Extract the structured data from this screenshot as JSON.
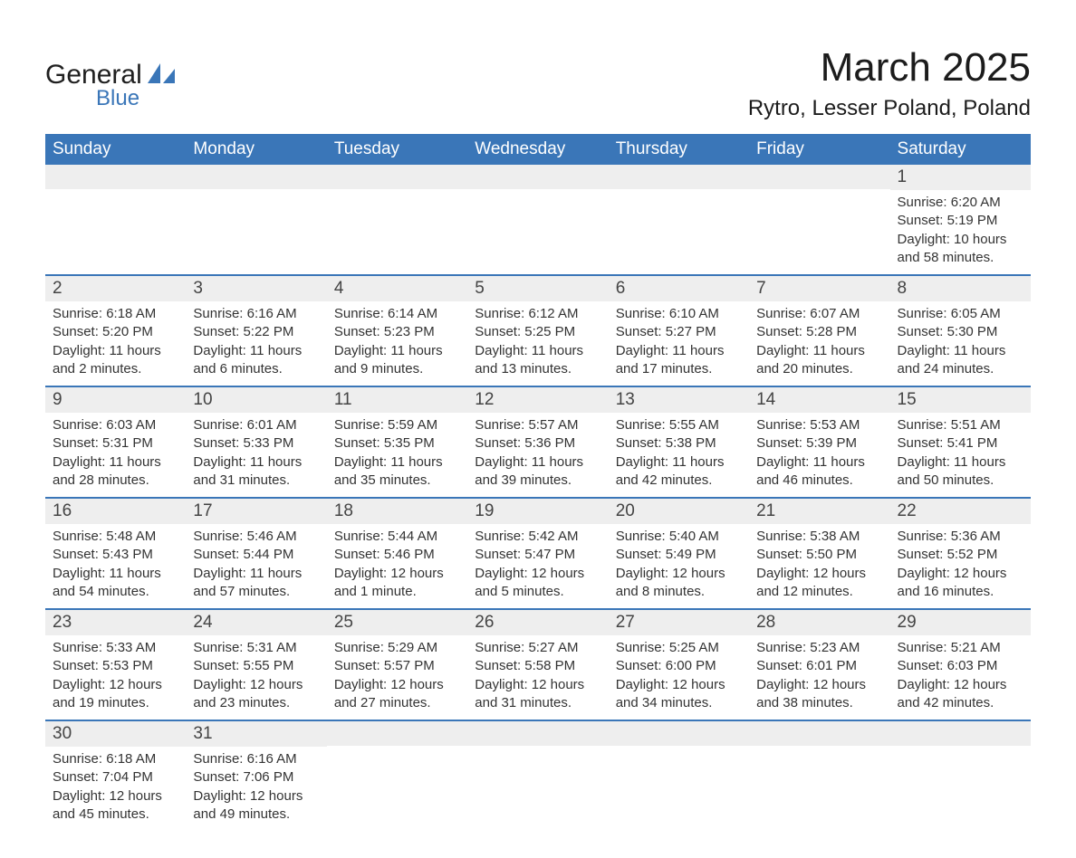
{
  "logo": {
    "main": "General",
    "sub": "Blue",
    "sail_color": "#3a76b8"
  },
  "title": "March 2025",
  "location": "Rytro, Lesser Poland, Poland",
  "header_bg": "#3a76b8",
  "header_text_color": "#ffffff",
  "daynum_bg": "#eeeeee",
  "row_divider_color": "#3a76b8",
  "text_color": "#333333",
  "weekdays": [
    "Sunday",
    "Monday",
    "Tuesday",
    "Wednesday",
    "Thursday",
    "Friday",
    "Saturday"
  ],
  "weeks": [
    [
      null,
      null,
      null,
      null,
      null,
      null,
      {
        "n": "1",
        "sunrise": "Sunrise: 6:20 AM",
        "sunset": "Sunset: 5:19 PM",
        "daylight": "Daylight: 10 hours and 58 minutes."
      }
    ],
    [
      {
        "n": "2",
        "sunrise": "Sunrise: 6:18 AM",
        "sunset": "Sunset: 5:20 PM",
        "daylight": "Daylight: 11 hours and 2 minutes."
      },
      {
        "n": "3",
        "sunrise": "Sunrise: 6:16 AM",
        "sunset": "Sunset: 5:22 PM",
        "daylight": "Daylight: 11 hours and 6 minutes."
      },
      {
        "n": "4",
        "sunrise": "Sunrise: 6:14 AM",
        "sunset": "Sunset: 5:23 PM",
        "daylight": "Daylight: 11 hours and 9 minutes."
      },
      {
        "n": "5",
        "sunrise": "Sunrise: 6:12 AM",
        "sunset": "Sunset: 5:25 PM",
        "daylight": "Daylight: 11 hours and 13 minutes."
      },
      {
        "n": "6",
        "sunrise": "Sunrise: 6:10 AM",
        "sunset": "Sunset: 5:27 PM",
        "daylight": "Daylight: 11 hours and 17 minutes."
      },
      {
        "n": "7",
        "sunrise": "Sunrise: 6:07 AM",
        "sunset": "Sunset: 5:28 PM",
        "daylight": "Daylight: 11 hours and 20 minutes."
      },
      {
        "n": "8",
        "sunrise": "Sunrise: 6:05 AM",
        "sunset": "Sunset: 5:30 PM",
        "daylight": "Daylight: 11 hours and 24 minutes."
      }
    ],
    [
      {
        "n": "9",
        "sunrise": "Sunrise: 6:03 AM",
        "sunset": "Sunset: 5:31 PM",
        "daylight": "Daylight: 11 hours and 28 minutes."
      },
      {
        "n": "10",
        "sunrise": "Sunrise: 6:01 AM",
        "sunset": "Sunset: 5:33 PM",
        "daylight": "Daylight: 11 hours and 31 minutes."
      },
      {
        "n": "11",
        "sunrise": "Sunrise: 5:59 AM",
        "sunset": "Sunset: 5:35 PM",
        "daylight": "Daylight: 11 hours and 35 minutes."
      },
      {
        "n": "12",
        "sunrise": "Sunrise: 5:57 AM",
        "sunset": "Sunset: 5:36 PM",
        "daylight": "Daylight: 11 hours and 39 minutes."
      },
      {
        "n": "13",
        "sunrise": "Sunrise: 5:55 AM",
        "sunset": "Sunset: 5:38 PM",
        "daylight": "Daylight: 11 hours and 42 minutes."
      },
      {
        "n": "14",
        "sunrise": "Sunrise: 5:53 AM",
        "sunset": "Sunset: 5:39 PM",
        "daylight": "Daylight: 11 hours and 46 minutes."
      },
      {
        "n": "15",
        "sunrise": "Sunrise: 5:51 AM",
        "sunset": "Sunset: 5:41 PM",
        "daylight": "Daylight: 11 hours and 50 minutes."
      }
    ],
    [
      {
        "n": "16",
        "sunrise": "Sunrise: 5:48 AM",
        "sunset": "Sunset: 5:43 PM",
        "daylight": "Daylight: 11 hours and 54 minutes."
      },
      {
        "n": "17",
        "sunrise": "Sunrise: 5:46 AM",
        "sunset": "Sunset: 5:44 PM",
        "daylight": "Daylight: 11 hours and 57 minutes."
      },
      {
        "n": "18",
        "sunrise": "Sunrise: 5:44 AM",
        "sunset": "Sunset: 5:46 PM",
        "daylight": "Daylight: 12 hours and 1 minute."
      },
      {
        "n": "19",
        "sunrise": "Sunrise: 5:42 AM",
        "sunset": "Sunset: 5:47 PM",
        "daylight": "Daylight: 12 hours and 5 minutes."
      },
      {
        "n": "20",
        "sunrise": "Sunrise: 5:40 AM",
        "sunset": "Sunset: 5:49 PM",
        "daylight": "Daylight: 12 hours and 8 minutes."
      },
      {
        "n": "21",
        "sunrise": "Sunrise: 5:38 AM",
        "sunset": "Sunset: 5:50 PM",
        "daylight": "Daylight: 12 hours and 12 minutes."
      },
      {
        "n": "22",
        "sunrise": "Sunrise: 5:36 AM",
        "sunset": "Sunset: 5:52 PM",
        "daylight": "Daylight: 12 hours and 16 minutes."
      }
    ],
    [
      {
        "n": "23",
        "sunrise": "Sunrise: 5:33 AM",
        "sunset": "Sunset: 5:53 PM",
        "daylight": "Daylight: 12 hours and 19 minutes."
      },
      {
        "n": "24",
        "sunrise": "Sunrise: 5:31 AM",
        "sunset": "Sunset: 5:55 PM",
        "daylight": "Daylight: 12 hours and 23 minutes."
      },
      {
        "n": "25",
        "sunrise": "Sunrise: 5:29 AM",
        "sunset": "Sunset: 5:57 PM",
        "daylight": "Daylight: 12 hours and 27 minutes."
      },
      {
        "n": "26",
        "sunrise": "Sunrise: 5:27 AM",
        "sunset": "Sunset: 5:58 PM",
        "daylight": "Daylight: 12 hours and 31 minutes."
      },
      {
        "n": "27",
        "sunrise": "Sunrise: 5:25 AM",
        "sunset": "Sunset: 6:00 PM",
        "daylight": "Daylight: 12 hours and 34 minutes."
      },
      {
        "n": "28",
        "sunrise": "Sunrise: 5:23 AM",
        "sunset": "Sunset: 6:01 PM",
        "daylight": "Daylight: 12 hours and 38 minutes."
      },
      {
        "n": "29",
        "sunrise": "Sunrise: 5:21 AM",
        "sunset": "Sunset: 6:03 PM",
        "daylight": "Daylight: 12 hours and 42 minutes."
      }
    ],
    [
      {
        "n": "30",
        "sunrise": "Sunrise: 6:18 AM",
        "sunset": "Sunset: 7:04 PM",
        "daylight": "Daylight: 12 hours and 45 minutes."
      },
      {
        "n": "31",
        "sunrise": "Sunrise: 6:16 AM",
        "sunset": "Sunset: 7:06 PM",
        "daylight": "Daylight: 12 hours and 49 minutes."
      },
      null,
      null,
      null,
      null,
      null
    ]
  ]
}
